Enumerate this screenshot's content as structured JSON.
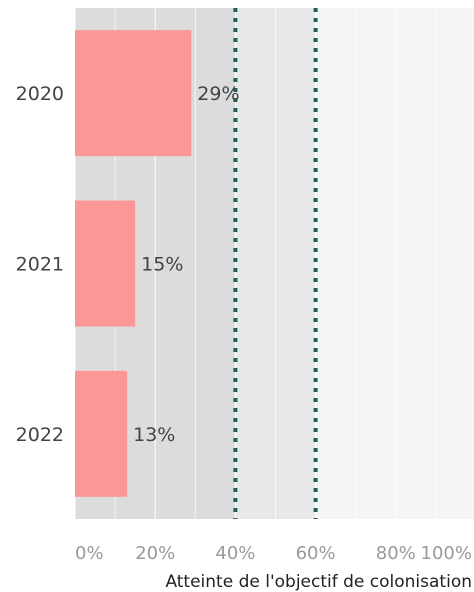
{
  "chart_data": {
    "type": "bar",
    "orientation": "horizontal",
    "categories": [
      "2020",
      "2021",
      "2022"
    ],
    "values": [
      29,
      15,
      13
    ],
    "value_labels": [
      "29%",
      "15%",
      "13%"
    ],
    "xlim": [
      0,
      100
    ],
    "xticks": [
      0,
      20,
      40,
      60,
      80,
      100
    ],
    "xtick_labels": [
      "0%",
      "20%",
      "40%",
      "60%",
      "80%",
      "100%"
    ],
    "xlabel": "Atteinte de l'objectif de colonisation",
    "ylabel": "",
    "title": "",
    "reference_lines": [
      40,
      60
    ],
    "background_bands": [
      {
        "from": 0,
        "to": 40,
        "color": "#dcdcdc"
      },
      {
        "from": 40,
        "to": 60,
        "color": "#e8e8e8"
      },
      {
        "from": 60,
        "to": 100,
        "color": "#f5f5f5"
      }
    ],
    "colors": {
      "bar": "#fc9797",
      "reference_line": "#1f5c5c",
      "gridline": "#ffffff",
      "text": "#444444",
      "tick_text": "#999999"
    },
    "grid": true
  }
}
